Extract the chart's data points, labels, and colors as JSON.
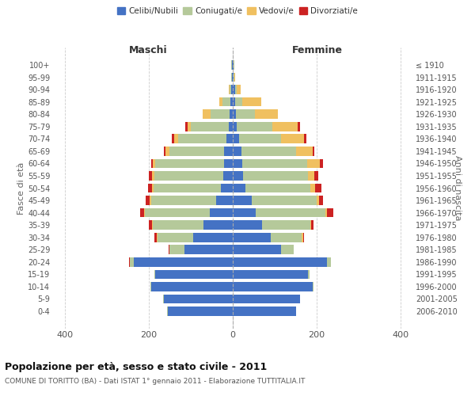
{
  "age_groups": [
    "0-4",
    "5-9",
    "10-14",
    "15-19",
    "20-24",
    "25-29",
    "30-34",
    "35-39",
    "40-44",
    "45-49",
    "50-54",
    "55-59",
    "60-64",
    "65-69",
    "70-74",
    "75-79",
    "80-84",
    "85-89",
    "90-94",
    "95-99",
    "100+"
  ],
  "birth_years": [
    "2006-2010",
    "2001-2005",
    "1996-2000",
    "1991-1995",
    "1986-1990",
    "1981-1985",
    "1976-1980",
    "1971-1975",
    "1966-1970",
    "1961-1965",
    "1956-1960",
    "1951-1955",
    "1946-1950",
    "1941-1945",
    "1936-1940",
    "1931-1935",
    "1926-1930",
    "1921-1925",
    "1916-1920",
    "1911-1915",
    "≤ 1910"
  ],
  "males": {
    "celibi": [
      155,
      165,
      195,
      185,
      235,
      115,
      95,
      70,
      55,
      40,
      28,
      22,
      20,
      20,
      15,
      10,
      8,
      5,
      3,
      2,
      2
    ],
    "coniugati": [
      1,
      1,
      2,
      2,
      10,
      35,
      85,
      120,
      155,
      155,
      160,
      165,
      165,
      130,
      115,
      90,
      45,
      20,
      5,
      2,
      1
    ],
    "vedovi": [
      0,
      0,
      0,
      0,
      1,
      0,
      1,
      2,
      2,
      3,
      5,
      5,
      5,
      10,
      10,
      8,
      18,
      8,
      2,
      0,
      0
    ],
    "divorziati": [
      0,
      0,
      0,
      0,
      1,
      2,
      5,
      8,
      8,
      10,
      8,
      8,
      5,
      5,
      5,
      5,
      0,
      0,
      0,
      0,
      0
    ]
  },
  "females": {
    "nubili": [
      150,
      160,
      190,
      180,
      225,
      115,
      90,
      70,
      55,
      45,
      30,
      25,
      22,
      20,
      15,
      10,
      8,
      5,
      5,
      2,
      2
    ],
    "coniugate": [
      1,
      1,
      2,
      2,
      8,
      30,
      75,
      115,
      165,
      155,
      155,
      155,
      155,
      130,
      100,
      85,
      45,
      18,
      5,
      2,
      1
    ],
    "vedove": [
      0,
      0,
      0,
      0,
      0,
      0,
      2,
      2,
      5,
      5,
      12,
      15,
      30,
      40,
      55,
      60,
      55,
      45,
      8,
      1,
      0
    ],
    "divorziate": [
      0,
      0,
      0,
      0,
      1,
      1,
      2,
      5,
      15,
      10,
      15,
      8,
      8,
      5,
      5,
      5,
      0,
      0,
      0,
      0,
      0
    ]
  },
  "colors": {
    "celibi": "#4472c4",
    "coniugati": "#b5c99a",
    "vedovi": "#f0c060",
    "divorziati": "#cc2222"
  },
  "title": "Popolazione per età, sesso e stato civile - 2011",
  "subtitle": "COMUNE DI TORITTO (BA) - Dati ISTAT 1° gennaio 2011 - Elaborazione TUTTITALIA.IT",
  "xlabel_left": "Maschi",
  "xlabel_right": "Femmine",
  "ylabel_left": "Fasce di età",
  "ylabel_right": "Anni di nascita",
  "xlim": 430,
  "background_color": "#ffffff",
  "grid_color": "#cccccc"
}
